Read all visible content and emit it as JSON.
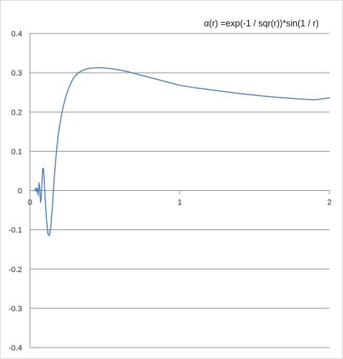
{
  "chart_data": {
    "type": "line",
    "title": "α(r) =exp(-1 / sqr(r))*sin(1 / r)",
    "xlabel": "",
    "ylabel": "",
    "xlim": [
      0,
      2
    ],
    "ylim": [
      -0.4,
      0.4
    ],
    "x_ticks": [
      "0",
      "1",
      "2"
    ],
    "y_ticks": [
      "0.4",
      "0.3",
      "0.2",
      "0.1",
      "0",
      "-0.1",
      "-0.2",
      "-0.3",
      "-0.4"
    ],
    "grid": "horizontal",
    "legend": "none",
    "series": [
      {
        "color": "#4f81bd",
        "x": [
          0.02,
          0.025,
          0.03,
          0.035,
          0.04,
          0.045,
          0.05,
          0.055,
          0.06,
          0.065,
          0.07,
          0.075,
          0.08,
          0.085,
          0.09,
          0.095,
          0.1,
          0.11,
          0.12,
          0.13,
          0.14,
          0.15,
          0.16,
          0.17,
          0.18,
          0.19,
          0.2,
          0.22,
          0.24,
          0.26,
          0.28,
          0.3,
          0.32,
          0.35,
          0.38,
          0.42,
          0.46,
          0.5,
          0.55,
          0.6,
          0.65,
          0.7,
          0.75,
          0.8,
          0.85,
          0.9,
          0.95,
          1.0,
          1.1,
          1.2,
          1.3,
          1.4,
          1.5,
          1.6,
          1.7,
          1.8,
          1.9,
          2.0
        ],
        "y": [
          0.0,
          0.0,
          0.0,
          0.002,
          0.007,
          -0.004,
          0.005,
          -0.012,
          0.02,
          0.008,
          -0.03,
          -0.02,
          0.02,
          0.055,
          0.057,
          0.03,
          -0.01,
          -0.07,
          -0.11,
          -0.115,
          -0.09,
          -0.04,
          0.02,
          0.07,
          0.11,
          0.145,
          0.17,
          0.21,
          0.24,
          0.262,
          0.279,
          0.291,
          0.299,
          0.306,
          0.31,
          0.312,
          0.313,
          0.312,
          0.31,
          0.307,
          0.303,
          0.298,
          0.293,
          0.288,
          0.283,
          0.278,
          0.273,
          0.268,
          0.262,
          0.257,
          0.252,
          0.247,
          0.243,
          0.239,
          0.236,
          0.233,
          0.231,
          0.236
        ]
      }
    ]
  }
}
